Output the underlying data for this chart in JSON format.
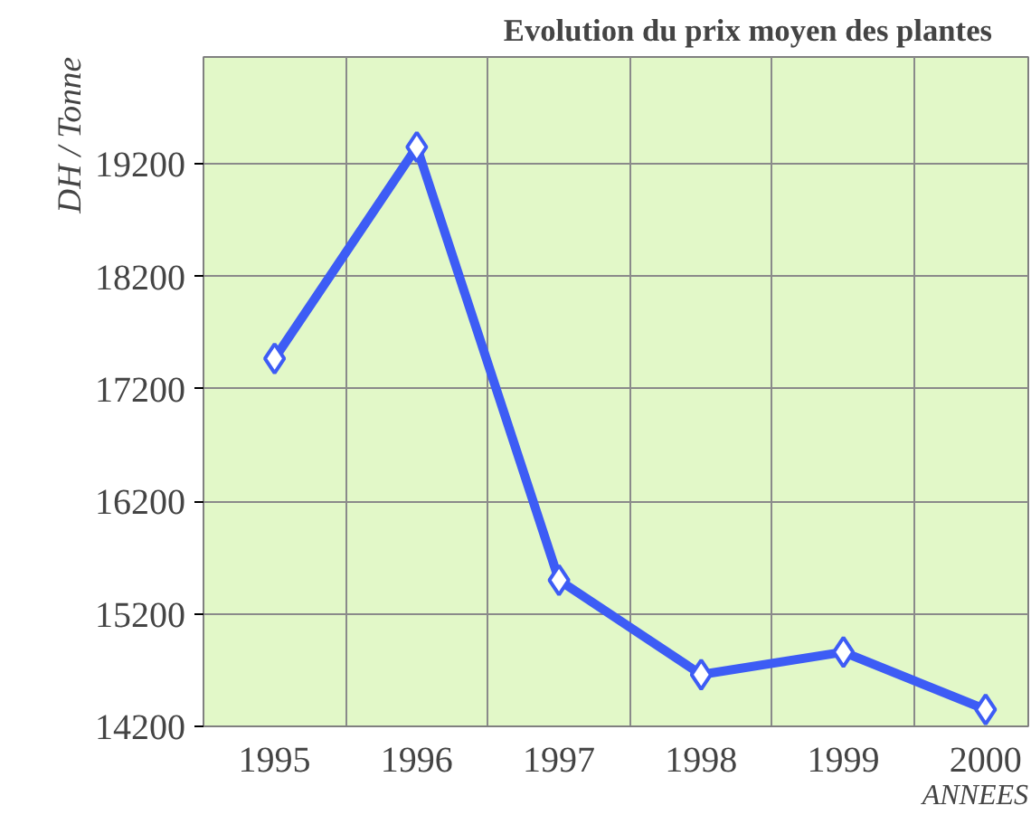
{
  "chart_data": {
    "type": "line",
    "title": "Evolution du prix moyen des plantes",
    "xlabel": "ANNEES",
    "ylabel": "DH / Tonne",
    "categories": [
      "1995",
      "1996",
      "1997",
      "1998",
      "1999",
      "2000"
    ],
    "series": [
      {
        "color": "#3d5cf5",
        "values": [
          17470,
          19350,
          15500,
          14660,
          14860,
          14350
        ]
      }
    ],
    "ylim": [
      14200,
      20150
    ],
    "yticks": [
      14200,
      15200,
      16200,
      17200,
      18200,
      19200
    ],
    "grid": true,
    "marker": "diamond",
    "line_style": "solid"
  }
}
